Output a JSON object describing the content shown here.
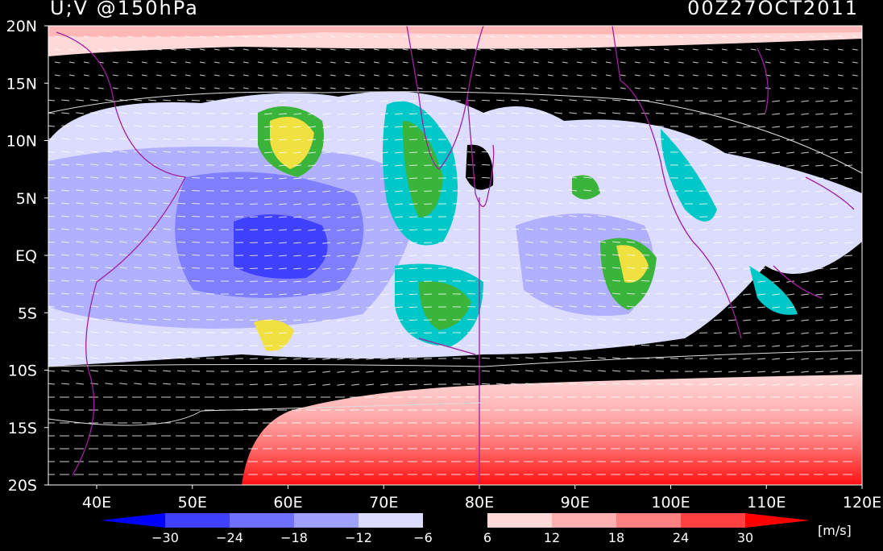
{
  "header": {
    "title": "U;V @150hPa",
    "time": "00Z27OCT2011"
  },
  "lat_labels": [
    "20N",
    "15N",
    "10N",
    "5N",
    "EQ",
    "5S",
    "10S",
    "15S",
    "20S"
  ],
  "lon_labels": [
    "40E",
    "50E",
    "60E",
    "70E",
    "80E",
    "90E",
    "100E",
    "110E",
    "120E"
  ],
  "colorbar": {
    "labels": [
      "−30",
      "−24",
      "−18",
      "−12",
      "−6",
      "6",
      "12",
      "18",
      "24",
      "30"
    ],
    "unit": "[m/s]"
  }
}
